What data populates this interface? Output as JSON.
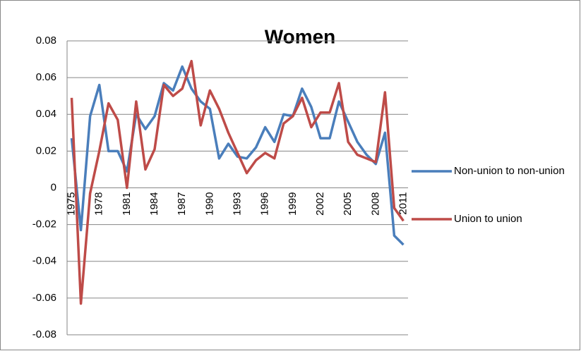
{
  "chart_data": {
    "type": "line",
    "title": "Women",
    "categories": [
      "1975",
      null,
      null,
      "1978",
      null,
      null,
      "1981",
      null,
      null,
      "1984",
      null,
      null,
      "1987",
      null,
      null,
      "1990",
      null,
      null,
      "1993",
      null,
      null,
      "1996",
      null,
      null,
      "1999",
      null,
      null,
      "2002",
      null,
      null,
      "2005",
      null,
      null,
      "2008",
      null,
      null,
      "2011"
    ],
    "series": [
      {
        "name": "Non-union to non-union",
        "color": "#4a7ebb",
        "values": [
          0.027,
          -0.023,
          0.039,
          0.056,
          0.02,
          0.02,
          0.009,
          0.04,
          0.032,
          0.039,
          0.057,
          0.053,
          0.066,
          0.054,
          0.047,
          0.043,
          0.016,
          0.024,
          0.017,
          0.016,
          0.022,
          0.033,
          0.025,
          0.04,
          0.039,
          0.054,
          0.044,
          0.027,
          0.027,
          0.047,
          0.036,
          0.025,
          0.018,
          0.013,
          0.03,
          -0.026,
          -0.031
        ]
      },
      {
        "name": "Union to union",
        "color": "#be4b48",
        "values": [
          0.049,
          -0.063,
          -0.003,
          0.02,
          0.046,
          0.037,
          0.0,
          0.047,
          0.01,
          0.021,
          0.056,
          0.05,
          0.054,
          0.069,
          0.034,
          0.053,
          0.043,
          0.03,
          0.019,
          0.008,
          0.015,
          0.019,
          0.016,
          0.035,
          0.039,
          0.049,
          0.033,
          0.041,
          0.041,
          0.057,
          0.025,
          0.018,
          0.016,
          0.014,
          0.052,
          -0.011,
          -0.018
        ]
      }
    ],
    "ylim": [
      -0.08,
      0.08
    ],
    "yticks": [
      {
        "value": -0.08,
        "label": "-0.08"
      },
      {
        "value": -0.06,
        "label": "-0.06"
      },
      {
        "value": -0.04,
        "label": "-0.04"
      },
      {
        "value": -0.02,
        "label": "-0.02"
      },
      0,
      {
        "value": 0.02,
        "label": "0.02"
      },
      {
        "value": 0.04,
        "label": "0.04"
      },
      {
        "value": 0.06,
        "label": "0.06"
      },
      {
        "value": 0.08,
        "label": "0.08"
      }
    ],
    "grid": true,
    "legend": "right"
  }
}
